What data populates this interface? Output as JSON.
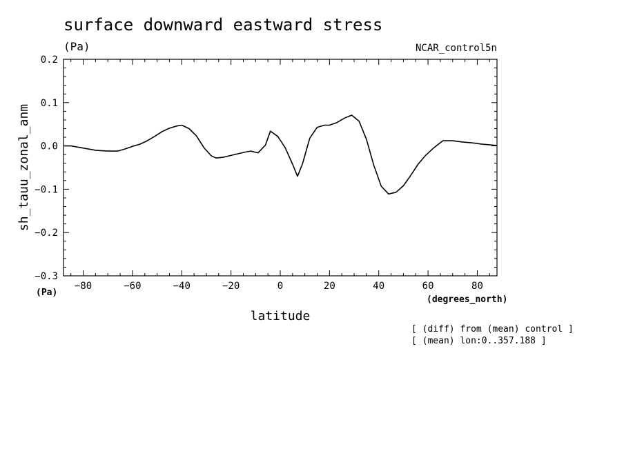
{
  "header": {
    "title": "surface downward eastward stress",
    "units": "(Pa)",
    "dataset": "NCAR_control5n"
  },
  "notes": [
    "[ (diff) from (mean) control ]",
    "[ (mean) lon:0..357.188 ]"
  ],
  "chart_data": {
    "type": "line",
    "title": "surface downward eastward stress",
    "xlabel": "latitude",
    "ylabel": "sh_tauu_zonal_anm",
    "y_units_label": "(Pa)",
    "x_units_label": "(degrees_north)",
    "xlim": [
      -88,
      88
    ],
    "ylim": [
      -0.3,
      0.2
    ],
    "x_ticks": [
      -80,
      -60,
      -40,
      -20,
      0,
      20,
      40,
      60,
      80
    ],
    "x_tick_labels": [
      "−80",
      "−60",
      "−40",
      "−20",
      "0",
      "20",
      "40",
      "60",
      "80"
    ],
    "y_ticks": [
      0.2,
      0.1,
      0.0,
      -0.1,
      -0.2,
      -0.3
    ],
    "y_tick_labels": [
      "0.2",
      "0.1",
      "0.0",
      "−0.1",
      "−0.2",
      "−0.3"
    ],
    "grid": false,
    "series": [
      {
        "x": [
          -88,
          -85,
          -80,
          -75,
          -70,
          -66,
          -63,
          -60,
          -57,
          -54,
          -51,
          -48,
          -45,
          -42,
          -40,
          -37,
          -34,
          -31,
          -28,
          -26,
          -23,
          -20,
          -17,
          -14,
          -12,
          -9,
          -6,
          -4,
          -1,
          2,
          5,
          7,
          9,
          12,
          15,
          18,
          20,
          23,
          26,
          29,
          32,
          35,
          38,
          41,
          44,
          47,
          50,
          53,
          56,
          59,
          62,
          66,
          70,
          74,
          78,
          82,
          86,
          88
        ],
        "y": [
          0.0,
          0.0,
          -0.005,
          -0.01,
          -0.012,
          -0.012,
          -0.007,
          -0.001,
          0.004,
          0.012,
          0.022,
          0.033,
          0.041,
          0.046,
          0.048,
          0.04,
          0.023,
          -0.004,
          -0.023,
          -0.028,
          -0.026,
          -0.022,
          -0.018,
          -0.014,
          -0.012,
          -0.016,
          0.002,
          0.034,
          0.022,
          -0.004,
          -0.042,
          -0.07,
          -0.042,
          0.018,
          0.043,
          0.048,
          0.048,
          0.054,
          0.064,
          0.071,
          0.057,
          0.015,
          -0.045,
          -0.093,
          -0.111,
          -0.107,
          -0.092,
          -0.068,
          -0.042,
          -0.022,
          -0.006,
          0.012,
          0.012,
          0.009,
          0.007,
          0.004,
          0.002,
          0.001
        ]
      }
    ]
  }
}
